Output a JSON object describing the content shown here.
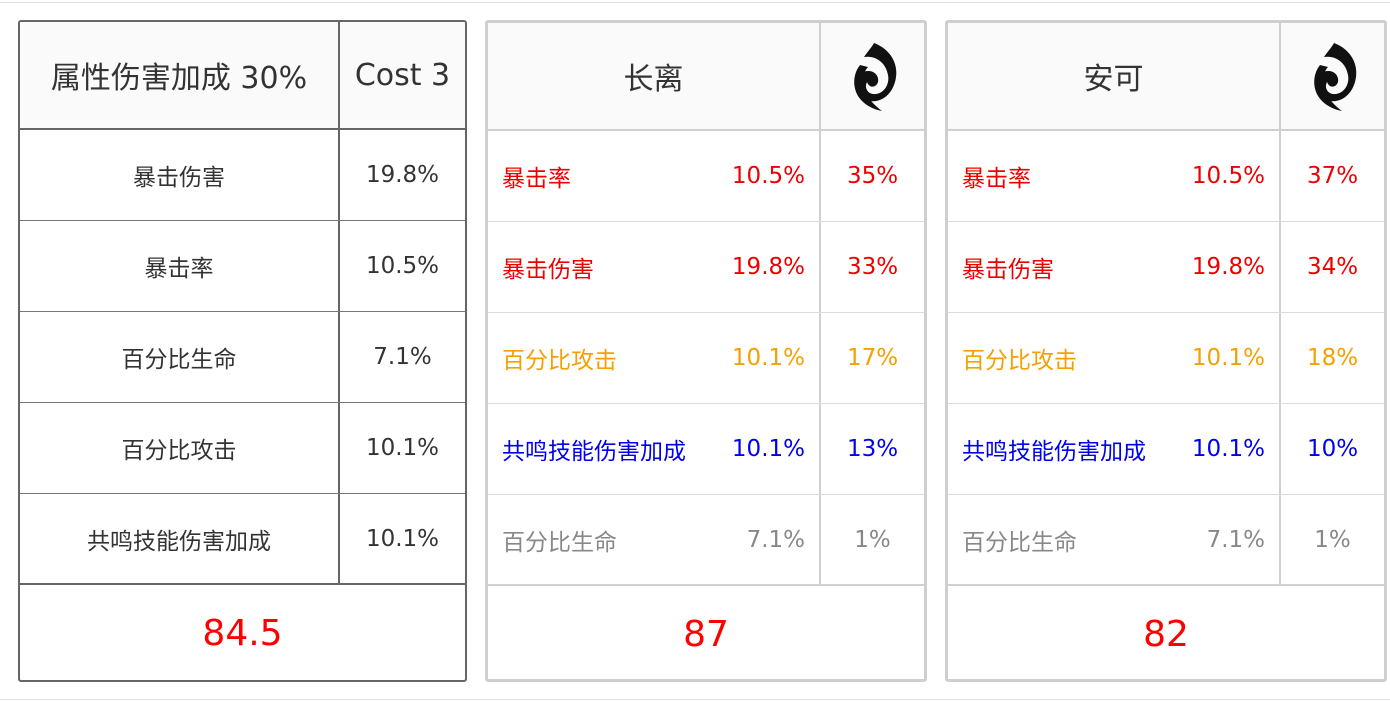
{
  "echo": {
    "main_stat": "属性伤害加成 30%",
    "cost": "Cost 3",
    "substats": [
      {
        "name": "暴击伤害",
        "value": "19.8%"
      },
      {
        "name": "暴击率",
        "value": "10.5%"
      },
      {
        "name": "百分比生命",
        "value": "7.1%"
      },
      {
        "name": "百分比攻击",
        "value": "10.1%"
      },
      {
        "name": "共鸣技能伤害加成",
        "value": "10.1%"
      }
    ],
    "score": "84.5"
  },
  "characters": [
    {
      "name": "长离",
      "icon": "spiral-emblem-icon",
      "stats": [
        {
          "name": "暴击率",
          "value": "10.5%",
          "weight": "35%",
          "color": "#ee0000"
        },
        {
          "name": "暴击伤害",
          "value": "19.8%",
          "weight": "33%",
          "color": "#ee0000"
        },
        {
          "name": "百分比攻击",
          "value": "10.1%",
          "weight": "17%",
          "color": "#f5a000"
        },
        {
          "name": "共鸣技能伤害加成",
          "value": "10.1%",
          "weight": "13%",
          "color": "#0000ee"
        },
        {
          "name": "百分比生命",
          "value": "7.1%",
          "weight": "1%",
          "color": "#888888"
        }
      ],
      "score": "87"
    },
    {
      "name": "安可",
      "icon": "spiral-emblem-icon",
      "stats": [
        {
          "name": "暴击率",
          "value": "10.5%",
          "weight": "37%",
          "color": "#ee0000"
        },
        {
          "name": "暴击伤害",
          "value": "19.8%",
          "weight": "34%",
          "color": "#ee0000"
        },
        {
          "name": "百分比攻击",
          "value": "10.1%",
          "weight": "18%",
          "color": "#f5a000"
        },
        {
          "name": "共鸣技能伤害加成",
          "value": "10.1%",
          "weight": "10%",
          "color": "#0000ee"
        },
        {
          "name": "百分比生命",
          "value": "7.1%",
          "weight": "1%",
          "color": "#888888"
        }
      ],
      "score": "82"
    }
  ]
}
